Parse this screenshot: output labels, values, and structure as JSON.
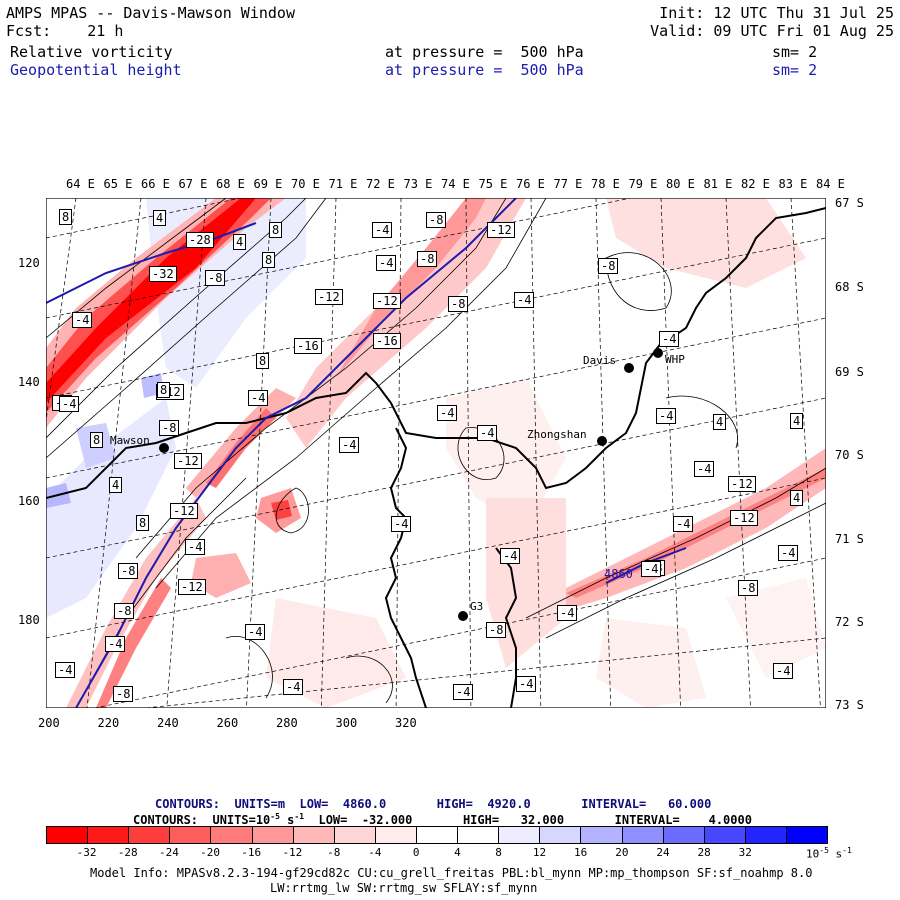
{
  "header": {
    "title": "AMPS MPAS -- Davis-Mawson Window",
    "init": "Init: 12 UTC Thu 31 Jul 25",
    "fcst": "Fcst:    21 h",
    "valid": "Valid: 09 UTC Fri 01 Aug 25",
    "field1": {
      "name": "Relative vorticity",
      "level": "at pressure =  500 hPa",
      "sm": "sm= 2"
    },
    "field2": {
      "name": "Geopotential height",
      "level": "at pressure =  500 hPa",
      "sm": "sm= 2"
    }
  },
  "lon_labels": [
    "64 E",
    "65 E",
    "66 E",
    "67 E",
    "68 E",
    "69 E",
    "70 E",
    "71 E",
    "72 E",
    "73 E",
    "74 E",
    "75 E",
    "76 E",
    "77 E",
    "78 E",
    "79 E",
    "80 E",
    "81 E",
    "82 E",
    "83 E",
    "84 E"
  ],
  "lat_labels": [
    "67 S",
    "68 S",
    "69 S",
    "70 S",
    "71 S",
    "72 S",
    "73 S"
  ],
  "x_ticks": [
    "200",
    "220",
    "240",
    "260",
    "280",
    "300",
    "320"
  ],
  "y_ticks": [
    "120",
    "140",
    "160",
    "180"
  ],
  "stations": [
    {
      "name": "Mawson"
    },
    {
      "name": "Davis"
    },
    {
      "name": "WHP"
    },
    {
      "name": "Zhongshan"
    },
    {
      "name": "G3"
    }
  ],
  "height_label": "4860",
  "vort_labels": [
    "8",
    "4",
    "-28",
    "-32",
    "-8",
    "4",
    "8",
    "8",
    "-8",
    "-4",
    "-8",
    "-12",
    "-4",
    "-4",
    "-12",
    "-12",
    "-16",
    "-8",
    "-4",
    "-8",
    "-4",
    "-12",
    "8",
    "-8",
    "-16",
    "-4",
    "-4",
    "8",
    "-12",
    "4",
    "8",
    "-4",
    "-4",
    "-4",
    "4",
    "4",
    "-4",
    "-12",
    "-4",
    "-12",
    "-8",
    "8",
    "4",
    "-12",
    "-4",
    "-8",
    "-4",
    "-12",
    "-4",
    "-8",
    "-4",
    "-4",
    "-8",
    "-4",
    "-4",
    "-4",
    "-4",
    "-4",
    "-4",
    "-8",
    "-4",
    "-4",
    "-4",
    "-4",
    "-8"
  ],
  "contours": {
    "line1": "CONTOURS:  UNITS=m  LOW=  4860.0       HIGH=  4920.0       INTERVAL=   60.000",
    "line2_pre": "CONTOURS:  UNITS=10",
    "line2_sup": "-5",
    "line2_mid": " s",
    "line2_sup2": "-1",
    "line2_post": "  LOW=  -32.000       HIGH=   32.000       INTERVAL=    4.0000"
  },
  "colorbar": {
    "colors": [
      "#ff0000",
      "#ff1a1a",
      "#ff3d3d",
      "#ff5c5c",
      "#ff7a7a",
      "#ff9999",
      "#ffb8b8",
      "#ffd6d6",
      "#ffeded",
      "#ffffff",
      "#ffffff",
      "#ededff",
      "#d6d6ff",
      "#b3b3ff",
      "#8f8fff",
      "#6b6bff",
      "#4747ff",
      "#2424ff",
      "#0000ff"
    ],
    "tick_labels": [
      "-32",
      "-28",
      "-24",
      "-20",
      "-16",
      "-12",
      "-8",
      "-4",
      "0",
      "4",
      "8",
      "12",
      "16",
      "20",
      "24",
      "28",
      "32"
    ],
    "units": "10",
    "units_sup": "-5",
    "units_tail": " s",
    "units_tail_sup": "-1"
  },
  "model_info": {
    "line1": "Model Info: MPASv8.2.3-194-gf29cd82c CU:cu_grell_freitas PBL:bl_mynn MP:mp_thompson SF:sf_noahmp 8.0",
    "line2": "LW:rrtmg_lw SW:rrtmg_sw SFLAY:sf_mynn"
  },
  "accent_colors": {
    "height_contour": "#1b1bb0",
    "positive": "#ff0000",
    "negative": "#0000ff"
  }
}
